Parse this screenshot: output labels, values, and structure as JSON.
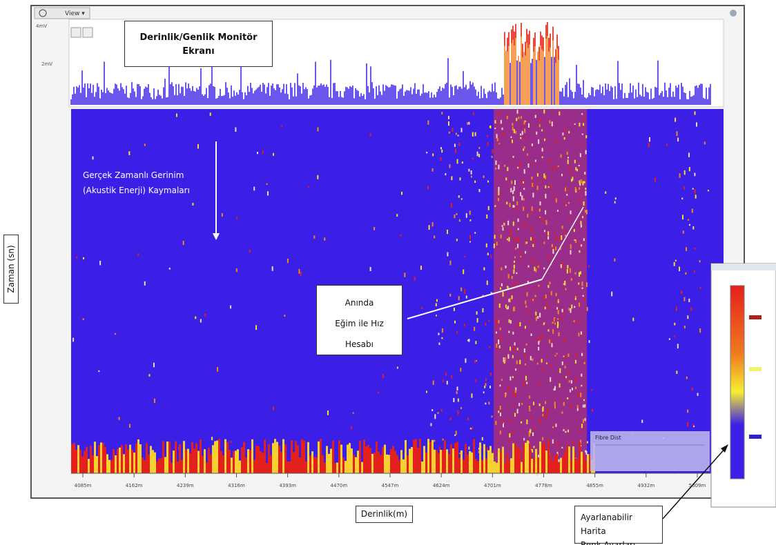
{
  "toolbar": {
    "view": "View ▾"
  },
  "monitor": {
    "y_labels": [
      "4mV",
      "2mV"
    ]
  },
  "waterfall": {
    "x_labels": [
      "4085m",
      "4162m",
      "4239m",
      "4316m",
      "4393m",
      "4470m",
      "4547m",
      "4624m",
      "4701m",
      "4778m",
      "4855m",
      "4932m",
      "5009m"
    ]
  },
  "annotations": {
    "monitor_title": [
      "Derinlik/Genlik Monitör",
      "Ekranı"
    ],
    "strain": [
      "Gerçek Zamanlı Gerinim",
      "(Akustik Enerji) Kaymaları"
    ],
    "velocity": [
      "Anında",
      "Eğim ile Hız",
      "Hesabı"
    ],
    "y_axis": "Zaman (sn)",
    "x_axis": "Derinlik(m)",
    "color_settings": [
      "Ayarlanabilir Harita",
      "Renk Ayarları"
    ]
  },
  "info_box": {
    "title": "Fibre Dist"
  }
}
